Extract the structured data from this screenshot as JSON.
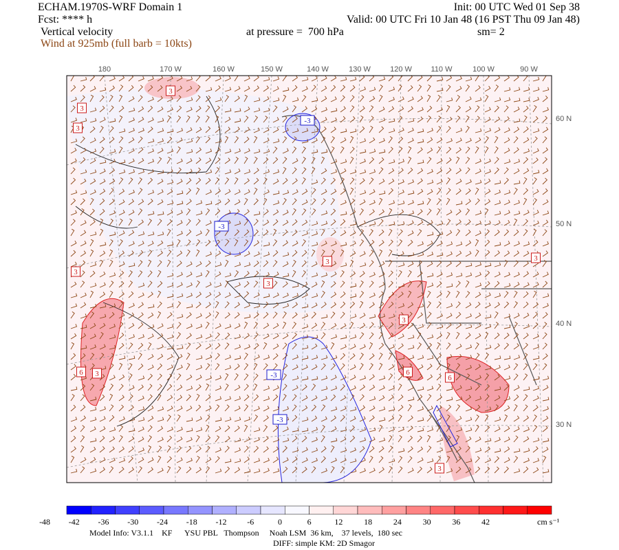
{
  "header": {
    "title": "ECHAM.1970S-WRF Domain 1",
    "fcst": "Fcst: **** h",
    "field": "Vertical velocity",
    "wind": "Wind at 925mb (full barb = 10kts)",
    "init": "Init: 00 UTC Wed 01 Sep 38",
    "valid": "Valid: 00 UTC Fri 10 Jan 48 (16 PST Thu 09 Jan 48)",
    "pressure": "at pressure =  700 hPa",
    "smooth": "sm= 2"
  },
  "map": {
    "lon_labels": [
      "180",
      "170 W",
      "160 W",
      "150 W",
      "140 W",
      "130 W",
      "120 W",
      "110 W",
      "100 W",
      "90 W"
    ],
    "lat_labels": [
      "60 N",
      "50 N",
      "40 N",
      "30 N"
    ],
    "contour_labels": [
      "3",
      "3",
      "3",
      "-3",
      "-3",
      "3",
      "3",
      "3",
      "3",
      "6",
      "3",
      "-3",
      "6",
      "6",
      "-3",
      "3",
      "3"
    ]
  },
  "colorbar": {
    "ticks": [
      "-48",
      "-42",
      "-36",
      "-30",
      "-24",
      "-18",
      "-12",
      "-6",
      "0",
      "6",
      "12",
      "18",
      "24",
      "30",
      "36",
      "42"
    ],
    "unit": "cm s⁻¹",
    "colors": [
      "#0000ff",
      "#2222ff",
      "#4040ff",
      "#5c5cff",
      "#7878ff",
      "#9494ff",
      "#b0b0ff",
      "#ccccff",
      "#e6e6ff",
      "#f8f8ff",
      "#fff0f0",
      "#ffd6d6",
      "#ffbcbc",
      "#ffa0a0",
      "#ff8484",
      "#ff6868",
      "#ff4c4c",
      "#ff3030",
      "#ff1818",
      "#ff0000"
    ]
  },
  "footer": {
    "model": "Model Info: V3.1.1    KF      YSU PBL   Thompson     Noah LSM  36 km,    37 levels,  180 sec",
    "diff": "DIFF: simple KM: 2D Smagor"
  }
}
